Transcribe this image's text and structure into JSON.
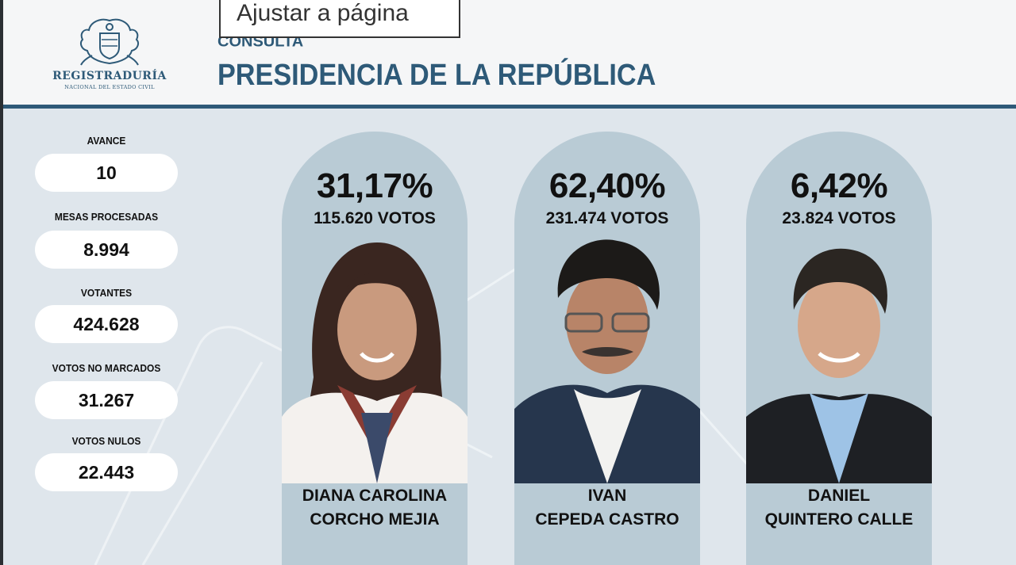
{
  "header": {
    "org_name": "REGISTRADURÍA",
    "org_subtitle": "NACIONAL DEL ESTADO CIVIL",
    "kicker": "CONSULTA",
    "title": "PRESIDENCIA DE LA REPÚBLICA"
  },
  "tooltip": {
    "text": "Ajustar a página"
  },
  "stats": [
    {
      "label": "AVANCE",
      "value": "10"
    },
    {
      "label": "MESAS PROCESADAS",
      "value": "8.994"
    },
    {
      "label": "VOTANTES",
      "value": "424.628"
    },
    {
      "label": "VOTOS NO MARCADOS",
      "value": "31.267"
    },
    {
      "label": "VOTOS NULOS",
      "value": "22.443"
    }
  ],
  "candidates": [
    {
      "percent": "31,17%",
      "votes": "115.620 VOTOS",
      "name_line1": "DIANA CAROLINA",
      "name_line2": "CORCHO MEJIA"
    },
    {
      "percent": "62,40%",
      "votes": "231.474 VOTOS",
      "name_line1": "IVAN",
      "name_line2": "CEPEDA CASTRO"
    },
    {
      "percent": "6,42%",
      "votes": "23.824 VOTOS",
      "name_line1": "DANIEL",
      "name_line2": "QUINTERO CALLE"
    }
  ],
  "colors": {
    "brand": "#2e5a78",
    "card": "#b9cbd5",
    "background": "#dfe6ec"
  }
}
